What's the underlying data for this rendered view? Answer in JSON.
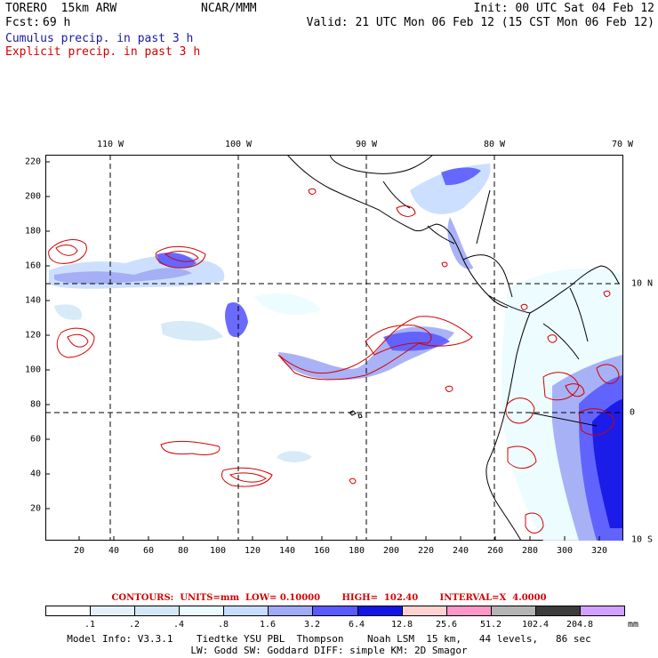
{
  "header": {
    "model": "TORERO  15km ARW",
    "center": "NCAR/MMM",
    "init": "Init: 00 UTC Sat 04 Feb 12",
    "fcst_label": "Fcst:",
    "fcst_value": "69 h",
    "valid": "Valid: 21 UTC Mon 06 Feb 12 (15 CST Mon 06 Feb 12)",
    "legend_cumulus": "Cumulus precip. in past 3 h",
    "legend_explicit": "Explicit precip. in past 3 h"
  },
  "axes": {
    "lon_labels": [
      "110 W",
      "100 W",
      "90 W",
      "80 W",
      "70 W"
    ],
    "lat_labels": [
      "10 N",
      "0",
      "10 S"
    ],
    "y_ticks": [
      "220",
      "200",
      "180",
      "160",
      "140",
      "120",
      "100",
      "80",
      "60",
      "40",
      "20"
    ],
    "x_ticks": [
      "20",
      "40",
      "60",
      "80",
      "100",
      "120",
      "140",
      "160",
      "180",
      "200",
      "220",
      "240",
      "260",
      "280",
      "300",
      "320"
    ]
  },
  "contours": {
    "text": "CONTOURS:  UNITS=mm  LOW= 0.10000       HIGH=  102.40       INTERVAL=X  4.0000"
  },
  "colorbar": {
    "colors": [
      "#ffffff",
      "#e6f0fa",
      "#d2e8f6",
      "#eafcff",
      "#c8dcff",
      "#a0aaf5",
      "#5a5aff",
      "#1414e6",
      "#ffd2d2",
      "#ff96c8",
      "#b4b4b4",
      "#3c3c3c",
      "#d2a0ff"
    ],
    "labels": [
      ".1",
      ".2",
      ".4",
      ".8",
      "1.6",
      "3.2",
      "6.4",
      "12.8",
      "25.6",
      "51.2",
      "102.4",
      "204.8"
    ],
    "unit": "mm"
  },
  "footer": {
    "line1": "Model Info: V3.3.1    Tiedtke YSU PBL  Thompson    Noah LSM  15 km,   44 levels,   86 sec",
    "line2": "LW: Godd SW: Goddard DIFF: simple KM: 2D Smagor"
  },
  "map_colors": {
    "light": "#d2e8f6",
    "mid": "#a0aaf5",
    "strong": "#5a5aff",
    "intense": "#1414e6",
    "contour": "#d40000",
    "coast": "#000000"
  }
}
